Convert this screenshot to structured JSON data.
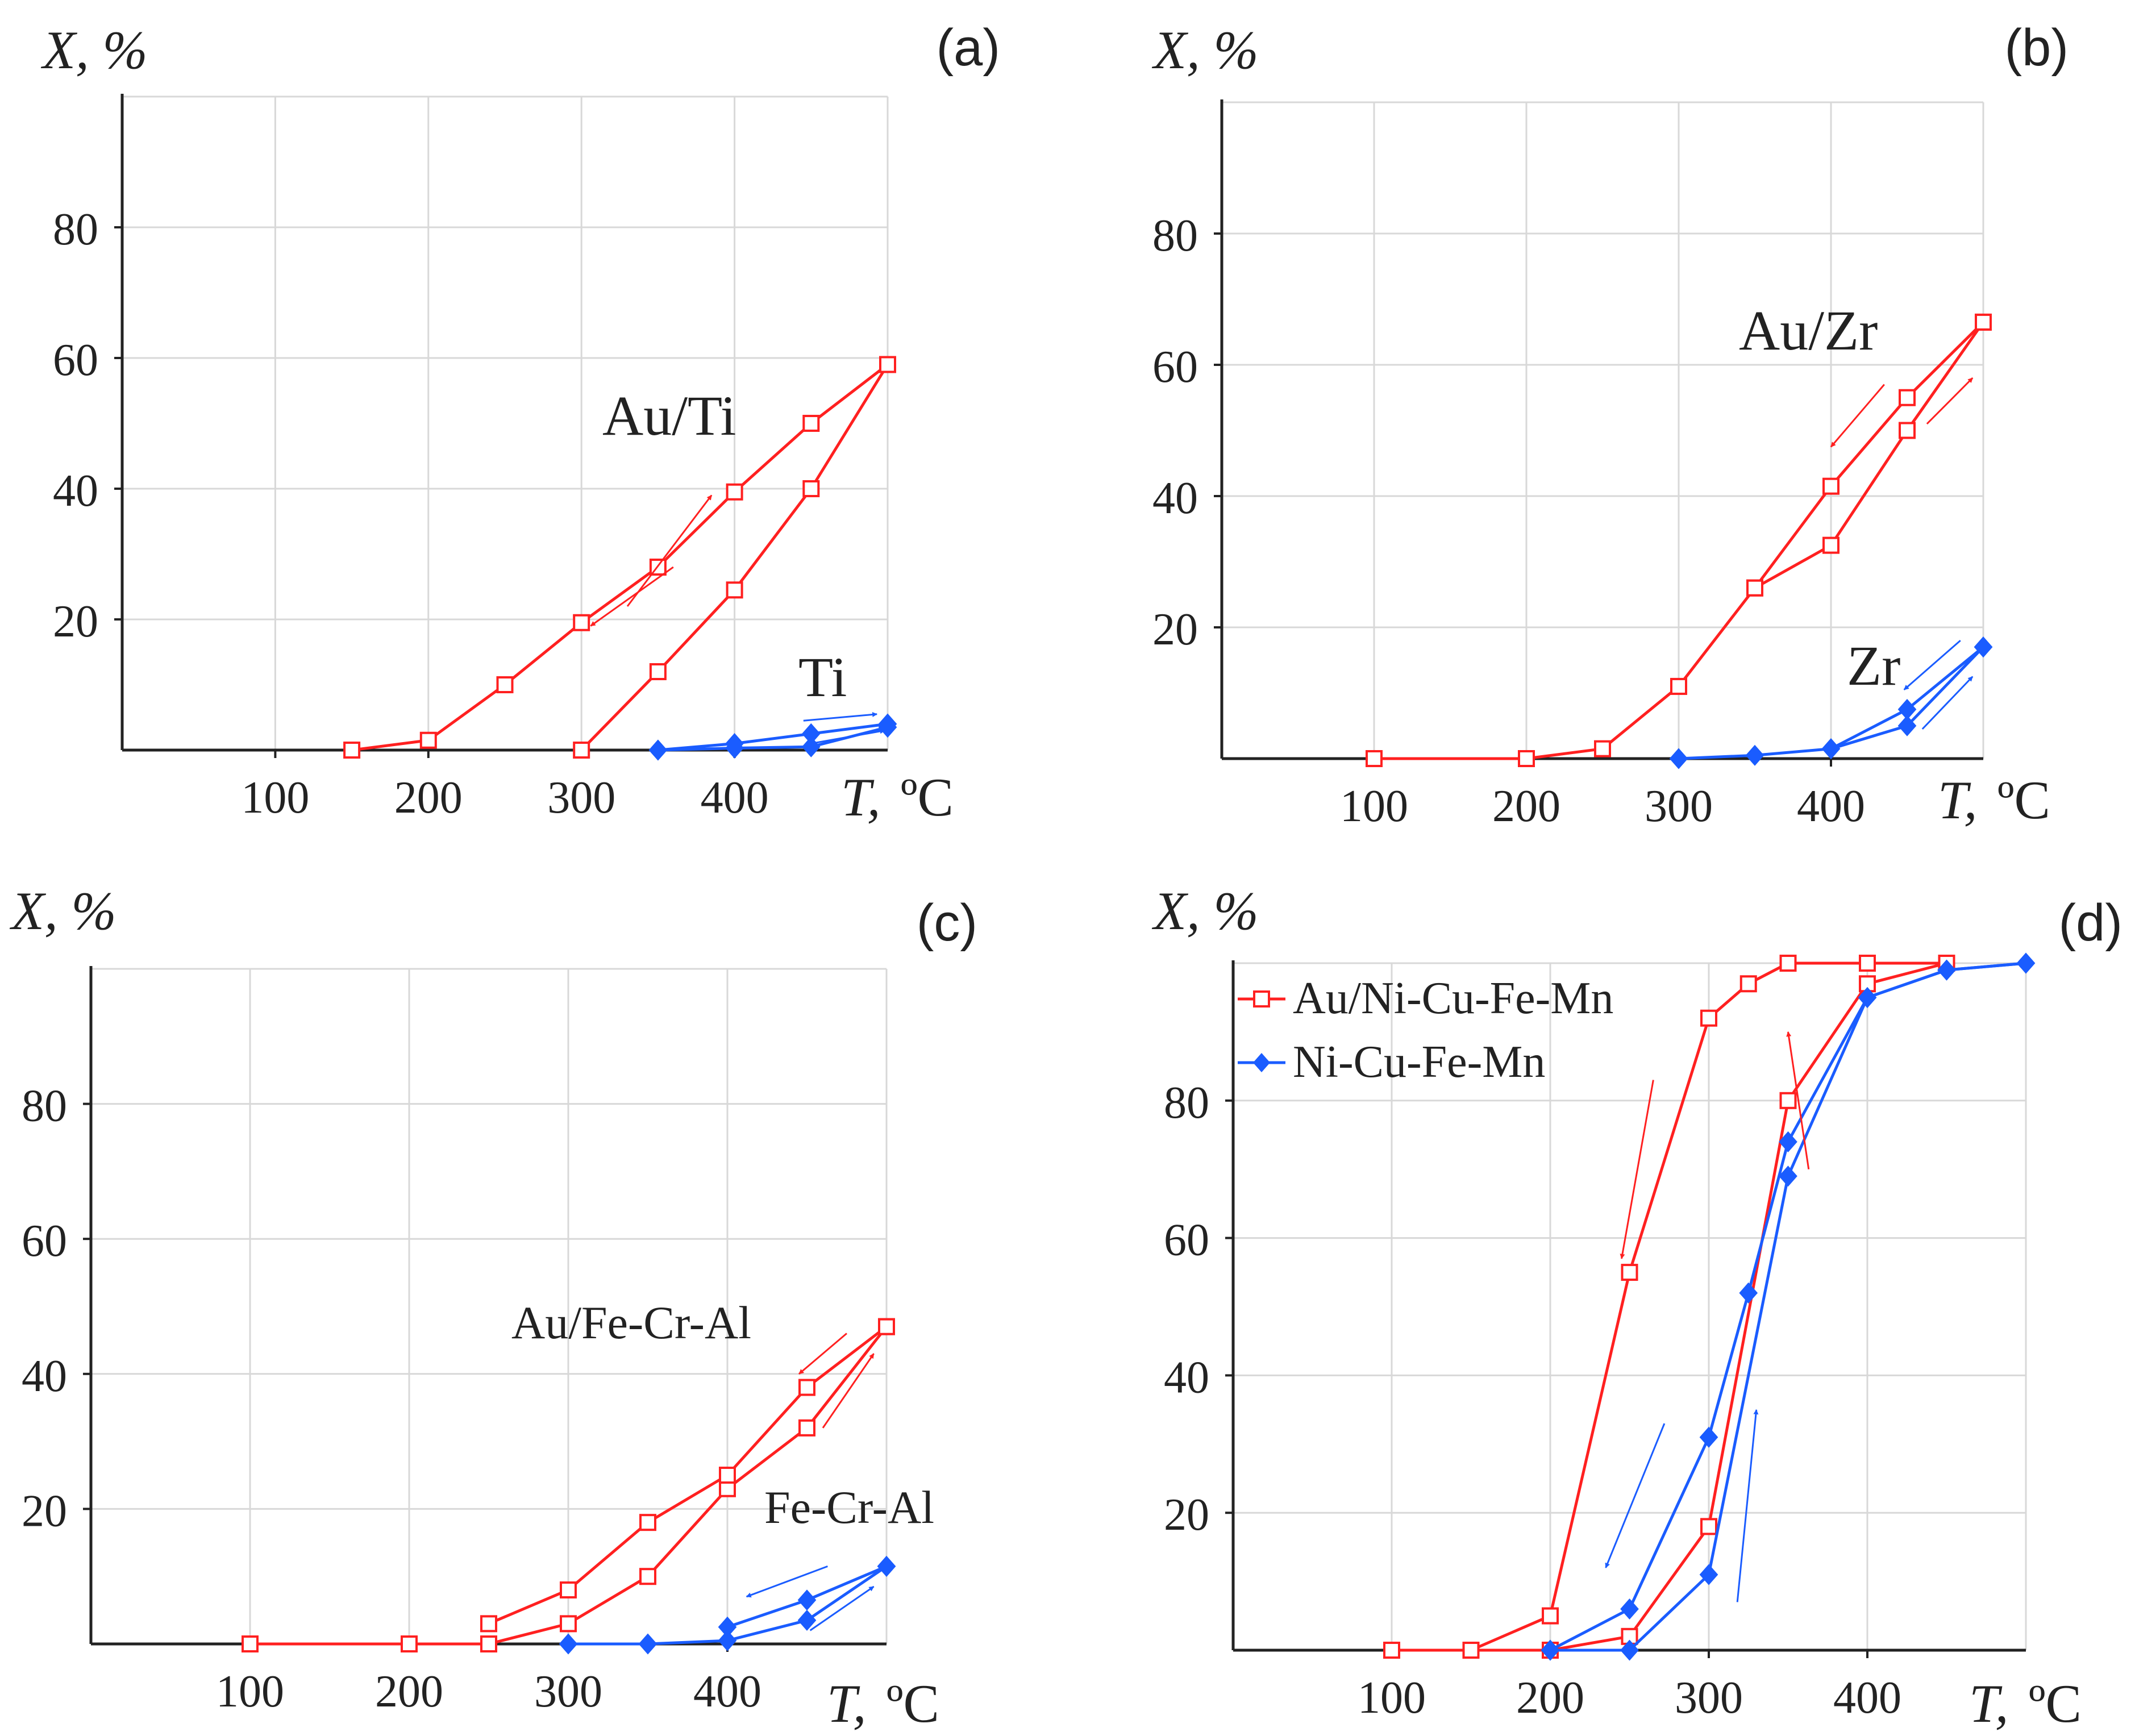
{
  "colors": {
    "red": "#ff2020",
    "blue": "#1a5cff",
    "axis": "#222222",
    "grid": "#d8d8d8"
  },
  "chart_data": [
    {
      "type": "line",
      "panel": "(a)",
      "ylabel": "X, %",
      "xlabel_var": "T,",
      "xlabel_unit": "ºC",
      "xlim": [
        0,
        500
      ],
      "ylim": [
        0,
        100
      ],
      "xticks": [
        100,
        200,
        300,
        400
      ],
      "yticks": [
        20,
        40,
        60,
        80
      ],
      "grid": true,
      "series": [
        {
          "name": "Au/Ti heating",
          "color": "red",
          "marker": "square-open",
          "x": [
            300,
            350,
            400,
            450,
            500
          ],
          "y": [
            0,
            12,
            24.5,
            40,
            59
          ]
        },
        {
          "name": "Au/Ti cooling",
          "color": "red",
          "marker": "square-open",
          "x": [
            500,
            450,
            400,
            350,
            300,
            250,
            200,
            150
          ],
          "y": [
            59,
            50,
            39.5,
            28,
            19.5,
            10,
            1.5,
            0
          ]
        },
        {
          "name": "Ti heating",
          "color": "blue",
          "marker": "diamond-filled",
          "x": [
            350,
            400,
            450,
            500
          ],
          "y": [
            0,
            0.3,
            0.5,
            3.5
          ]
        },
        {
          "name": "Ti cooling",
          "color": "blue",
          "marker": "diamond-filled",
          "x": [
            500,
            450,
            400,
            350
          ],
          "y": [
            4,
            2.5,
            1,
            0
          ]
        }
      ],
      "annotations": [
        {
          "text": "Au/Ti",
          "x": 300,
          "y": 48
        },
        {
          "text": "Ti",
          "x": 440,
          "y": 11
        }
      ],
      "arrows": [
        {
          "color": "red",
          "from": [
            330,
            22
          ],
          "to": [
            385,
            39
          ]
        },
        {
          "color": "red",
          "from": [
            360,
            28
          ],
          "to": [
            306,
            19
          ]
        },
        {
          "color": "blue",
          "from": [
            445,
            4.5
          ],
          "to": [
            493,
            5.5
          ]
        },
        {
          "color": "blue",
          "from": [
            450,
            1
          ],
          "to": [
            498,
            3
          ]
        }
      ]
    },
    {
      "type": "line",
      "panel": "(b)",
      "ylabel": "X, %",
      "xlabel_var": "T,",
      "xlabel_unit": "ºC",
      "xlim": [
        0,
        500
      ],
      "ylim": [
        0,
        100
      ],
      "xticks": [
        100,
        200,
        300,
        400
      ],
      "yticks": [
        20,
        40,
        60,
        80
      ],
      "grid": true,
      "series": [
        {
          "name": "Au/Zr heating",
          "color": "red",
          "marker": "square-open",
          "x": [
            100,
            200,
            250,
            300,
            350,
            400,
            450,
            500
          ],
          "y": [
            0,
            0,
            1.5,
            11,
            26,
            32.5,
            50,
            66.5
          ]
        },
        {
          "name": "Au/Zr cooling",
          "color": "red",
          "marker": "square-open",
          "x": [
            500,
            450,
            400,
            350
          ],
          "y": [
            66.5,
            55,
            41.5,
            26
          ]
        },
        {
          "name": "Zr heating",
          "color": "blue",
          "marker": "diamond-filled",
          "x": [
            300,
            350,
            400,
            450,
            500
          ],
          "y": [
            0,
            0.5,
            1.5,
            5,
            17
          ]
        },
        {
          "name": "Zr cooling",
          "color": "blue",
          "marker": "diamond-filled",
          "x": [
            500,
            450,
            400
          ],
          "y": [
            17,
            7.5,
            1.5
          ]
        }
      ],
      "annotations": [
        {
          "text": "Au/Zr",
          "x": 335,
          "y": 65
        },
        {
          "text": "Zr",
          "x": 420,
          "y": 14
        }
      ],
      "arrows": [
        {
          "color": "red",
          "from": [
            435,
            57
          ],
          "to": [
            400,
            47.5
          ]
        },
        {
          "color": "red",
          "from": [
            463,
            51
          ],
          "to": [
            493,
            58
          ]
        },
        {
          "color": "blue",
          "from": [
            485,
            18
          ],
          "to": [
            448,
            10.5
          ]
        },
        {
          "color": "blue",
          "from": [
            460,
            4.5
          ],
          "to": [
            493,
            12.5
          ]
        }
      ]
    },
    {
      "type": "line",
      "panel": "(c)",
      "ylabel": "X, %",
      "xlabel_var": "T,",
      "xlabel_unit": "ºC",
      "xlim": [
        0,
        500
      ],
      "ylim": [
        0,
        100
      ],
      "xticks": [
        100,
        200,
        300,
        400
      ],
      "yticks": [
        20,
        40,
        60,
        80
      ],
      "grid": true,
      "series": [
        {
          "name": "Au/Fe-Cr-Al heating",
          "color": "red",
          "marker": "square-open",
          "x": [
            100,
            200,
            250,
            300,
            350,
            400,
            450,
            500
          ],
          "y": [
            0,
            0,
            0,
            3,
            10,
            23,
            32,
            47
          ]
        },
        {
          "name": "Au/Fe-Cr-Al cooling",
          "color": "red",
          "marker": "square-open",
          "x": [
            500,
            450,
            400,
            350,
            300,
            250
          ],
          "y": [
            47,
            38,
            25,
            18,
            8,
            3
          ]
        },
        {
          "name": "Fe-Cr-Al heating",
          "color": "blue",
          "marker": "diamond-filled",
          "x": [
            300,
            350,
            400,
            450,
            500
          ],
          "y": [
            0,
            0,
            0.5,
            3.5,
            11.5
          ]
        },
        {
          "name": "Fe-Cr-Al cooling",
          "color": "blue",
          "marker": "diamond-filled",
          "x": [
            500,
            450,
            400
          ],
          "y": [
            11.5,
            6.5,
            2.5
          ]
        }
      ],
      "annotations": [
        {
          "text": "Au/Fe-Cr-Al",
          "x": 265,
          "y": 46
        },
        {
          "text": "Fe-Cr-Al",
          "x": 410,
          "y": 19
        }
      ],
      "arrows": [
        {
          "color": "red",
          "from": [
            475,
            46
          ],
          "to": [
            445,
            40
          ]
        },
        {
          "color": "red",
          "from": [
            460,
            32
          ],
          "to": [
            492,
            43
          ]
        },
        {
          "color": "blue",
          "from": [
            463,
            11.5
          ],
          "to": [
            412,
            7
          ]
        },
        {
          "color": "blue",
          "from": [
            452,
            2
          ],
          "to": [
            492,
            8.5
          ]
        }
      ]
    },
    {
      "type": "line",
      "panel": "(d)",
      "ylabel": "X, %",
      "xlabel_var": "T,",
      "xlabel_unit": "ºC",
      "xlim": [
        0,
        500
      ],
      "ylim": [
        0,
        100
      ],
      "xticks": [
        100,
        200,
        300,
        400
      ],
      "yticks": [
        20,
        40,
        60,
        80
      ],
      "grid": true,
      "legend": {
        "position": "top-left",
        "entries": [
          {
            "label": "Au/Ni-Cu-Fe-Mn",
            "color": "red",
            "marker": "square-open"
          },
          {
            "label": "Ni-Cu-Fe-Mn",
            "color": "blue",
            "marker": "diamond-filled"
          }
        ]
      },
      "series": [
        {
          "name": "Au/Ni-Cu-Fe-Mn heating",
          "color": "red",
          "marker": "square-open",
          "x": [
            100,
            150,
            200,
            250,
            300,
            350,
            400,
            450
          ],
          "y": [
            0,
            0,
            0,
            2,
            18,
            80,
            97,
            100
          ]
        },
        {
          "name": "Au/Ni-Cu-Fe-Mn cooling",
          "color": "red",
          "marker": "square-open",
          "x": [
            450,
            400,
            350,
            325,
            300,
            250,
            200,
            150,
            100
          ],
          "y": [
            100,
            100,
            100,
            97,
            92,
            55,
            5,
            0,
            0
          ]
        },
        {
          "name": "Ni-Cu-Fe-Mn heating",
          "color": "blue",
          "marker": "diamond-filled",
          "x": [
            200,
            250,
            300,
            350,
            400,
            450,
            500
          ],
          "y": [
            0,
            0,
            11,
            69,
            95,
            99,
            100
          ]
        },
        {
          "name": "Ni-Cu-Fe-Mn cooling",
          "color": "blue",
          "marker": "diamond-filled",
          "x": [
            500,
            450,
            400,
            350,
            325,
            300,
            250,
            200
          ],
          "y": [
            100,
            99,
            95,
            74,
            52,
            31,
            6,
            0
          ]
        }
      ],
      "annotations": [],
      "arrows": [
        {
          "color": "red",
          "from": [
            363,
            70
          ],
          "to": [
            350,
            90
          ]
        },
        {
          "color": "red",
          "from": [
            265,
            83
          ],
          "to": [
            245,
            57
          ]
        },
        {
          "color": "blue",
          "from": [
            272,
            33
          ],
          "to": [
            235,
            12
          ]
        },
        {
          "color": "blue",
          "from": [
            318,
            7
          ],
          "to": [
            330,
            35
          ]
        }
      ]
    }
  ]
}
